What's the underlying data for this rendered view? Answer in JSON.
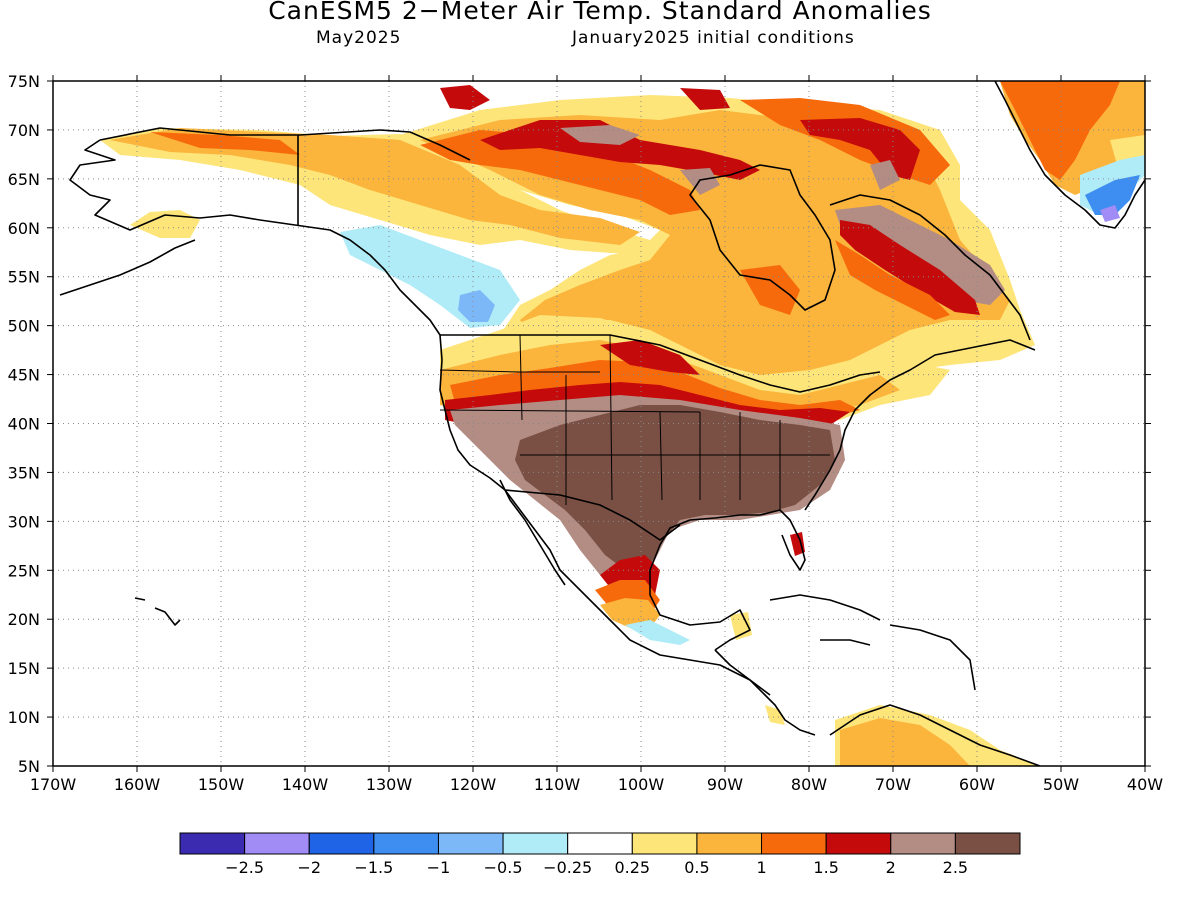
{
  "header": {
    "title": "CanESM5 2−Meter Air Temp. Standard Anomalies",
    "valid_month": "May2025",
    "init_conditions": "January2025 initial conditions"
  },
  "axes": {
    "lat_labels": [
      "75N",
      "70N",
      "65N",
      "60N",
      "55N",
      "50N",
      "45N",
      "40N",
      "35N",
      "30N",
      "25N",
      "20N",
      "15N",
      "10N",
      "5N"
    ],
    "lon_labels": [
      "170W",
      "160W",
      "150W",
      "140W",
      "130W",
      "120W",
      "110W",
      "100W",
      "90W",
      "80W",
      "70W",
      "60W",
      "50W",
      "40W"
    ],
    "lat_range": [
      5,
      75
    ],
    "lon_range": [
      -170,
      -40
    ],
    "gridlines": "dotted"
  },
  "legend": {
    "bins": [
      {
        "color": "#3a2bb0"
      },
      {
        "color": "#a18bf5"
      },
      {
        "color": "#1f64e6"
      },
      {
        "color": "#3e8df0"
      },
      {
        "color": "#7cb8f7"
      },
      {
        "color": "#b0ecf7"
      },
      {
        "color": "#ffffff"
      },
      {
        "color": "#fde57a"
      },
      {
        "color": "#fbb43c"
      },
      {
        "color": "#f76a0c"
      },
      {
        "color": "#c40a0a"
      },
      {
        "color": "#b38c83"
      },
      {
        "color": "#7a5044"
      }
    ],
    "labels": [
      "−2.5",
      "−2",
      "−1.5",
      "−1",
      "−0.5",
      "−0.25",
      "0.25",
      "0.5",
      "1",
      "1.5",
      "2",
      "2.5"
    ]
  },
  "palette": {
    "pale_yellow": "#fde57a",
    "light_orange": "#fbb43c",
    "orange": "#f76a0c",
    "red": "#c40a0a",
    "light_brown": "#b38c83",
    "dark_brown": "#7a5044",
    "cyan": "#b0ecf7",
    "light_blue": "#7cb8f7",
    "blue": "#3e8df0",
    "purple": "#a18bf5"
  }
}
